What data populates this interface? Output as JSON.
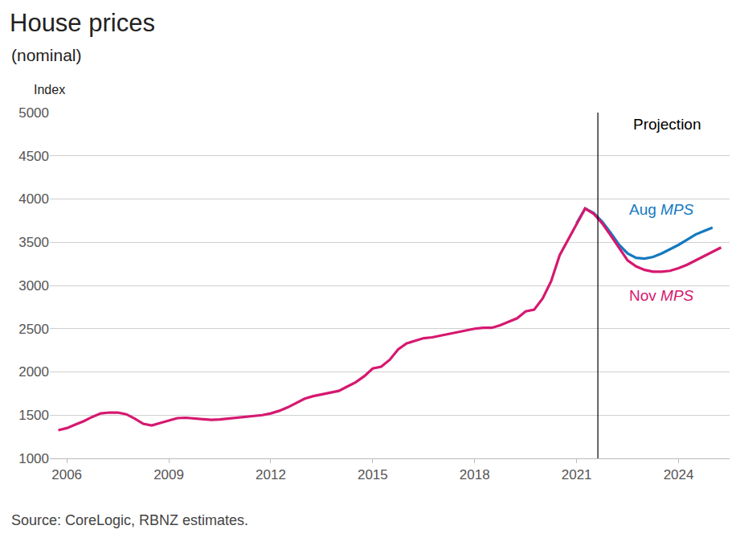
{
  "chart_data": {
    "type": "line",
    "title": "House prices",
    "subtitle": "(nominal)",
    "y_label": "Index",
    "source": "Source: CoreLogic, RBNZ estimates.",
    "projection": {
      "label": "Projection",
      "x": 2021.625
    },
    "x": [
      2005.75,
      2006,
      2006.25,
      2006.5,
      2006.75,
      2007,
      2007.25,
      2007.5,
      2007.75,
      2008,
      2008.25,
      2008.5,
      2008.75,
      2009,
      2009.25,
      2009.5,
      2009.75,
      2010,
      2010.25,
      2010.5,
      2010.75,
      2011,
      2011.25,
      2011.5,
      2011.75,
      2012,
      2012.25,
      2012.5,
      2012.75,
      2013,
      2013.25,
      2013.5,
      2013.75,
      2014,
      2014.25,
      2014.5,
      2014.75,
      2015,
      2015.25,
      2015.5,
      2015.75,
      2016,
      2016.25,
      2016.5,
      2016.75,
      2017,
      2017.25,
      2017.5,
      2017.75,
      2018,
      2018.25,
      2018.5,
      2018.75,
      2019,
      2019.25,
      2019.5,
      2019.75,
      2020,
      2020.25,
      2020.5,
      2020.75,
      2021,
      2021.25,
      2021.5,
      2021.75,
      2022,
      2022.25,
      2022.5,
      2022.75,
      2023,
      2023.25,
      2023.5,
      2023.75,
      2024,
      2024.25,
      2024.5,
      2024.75,
      2025,
      2025.25
    ],
    "series": [
      {
        "name": "Aug MPS",
        "color": "#1479c0",
        "values": [
          null,
          null,
          null,
          null,
          null,
          null,
          null,
          null,
          null,
          null,
          null,
          null,
          null,
          null,
          null,
          null,
          null,
          null,
          null,
          null,
          null,
          null,
          null,
          null,
          null,
          null,
          null,
          null,
          null,
          null,
          null,
          null,
          null,
          null,
          null,
          null,
          null,
          null,
          null,
          null,
          null,
          null,
          null,
          null,
          null,
          null,
          null,
          null,
          null,
          null,
          null,
          null,
          null,
          null,
          null,
          null,
          null,
          null,
          null,
          null,
          null,
          3720,
          3890,
          3840,
          3740,
          3610,
          3470,
          3370,
          3320,
          3310,
          3330,
          3370,
          3420,
          3470,
          3530,
          3590,
          3630,
          3670,
          null
        ]
      },
      {
        "name": "Nov MPS",
        "color": "#d6186f",
        "values": [
          1325,
          1350,
          1390,
          1430,
          1480,
          1520,
          1530,
          1530,
          1510,
          1460,
          1400,
          1380,
          1410,
          1440,
          1465,
          1470,
          1460,
          1450,
          1445,
          1450,
          1460,
          1470,
          1480,
          1490,
          1500,
          1520,
          1550,
          1590,
          1640,
          1690,
          1720,
          1740,
          1760,
          1780,
          1830,
          1880,
          1950,
          2040,
          2060,
          2140,
          2260,
          2330,
          2360,
          2390,
          2400,
          2420,
          2440,
          2460,
          2480,
          2500,
          2510,
          2510,
          2540,
          2580,
          2620,
          2700,
          2720,
          2850,
          3050,
          3350,
          3530,
          3720,
          3890,
          3830,
          3720,
          3580,
          3430,
          3290,
          3220,
          3180,
          3160,
          3160,
          3170,
          3200,
          3240,
          3290,
          3340,
          3390,
          3440
        ]
      }
    ],
    "xlim": [
      2005.5,
      2025.5
    ],
    "xticks": [
      2006,
      2009,
      2012,
      2015,
      2018,
      2021,
      2024
    ],
    "ylim": [
      1000,
      5000
    ],
    "yticks": [
      1000,
      1500,
      2000,
      2500,
      3000,
      3500,
      4000,
      4500,
      5000
    ],
    "grid": true
  }
}
